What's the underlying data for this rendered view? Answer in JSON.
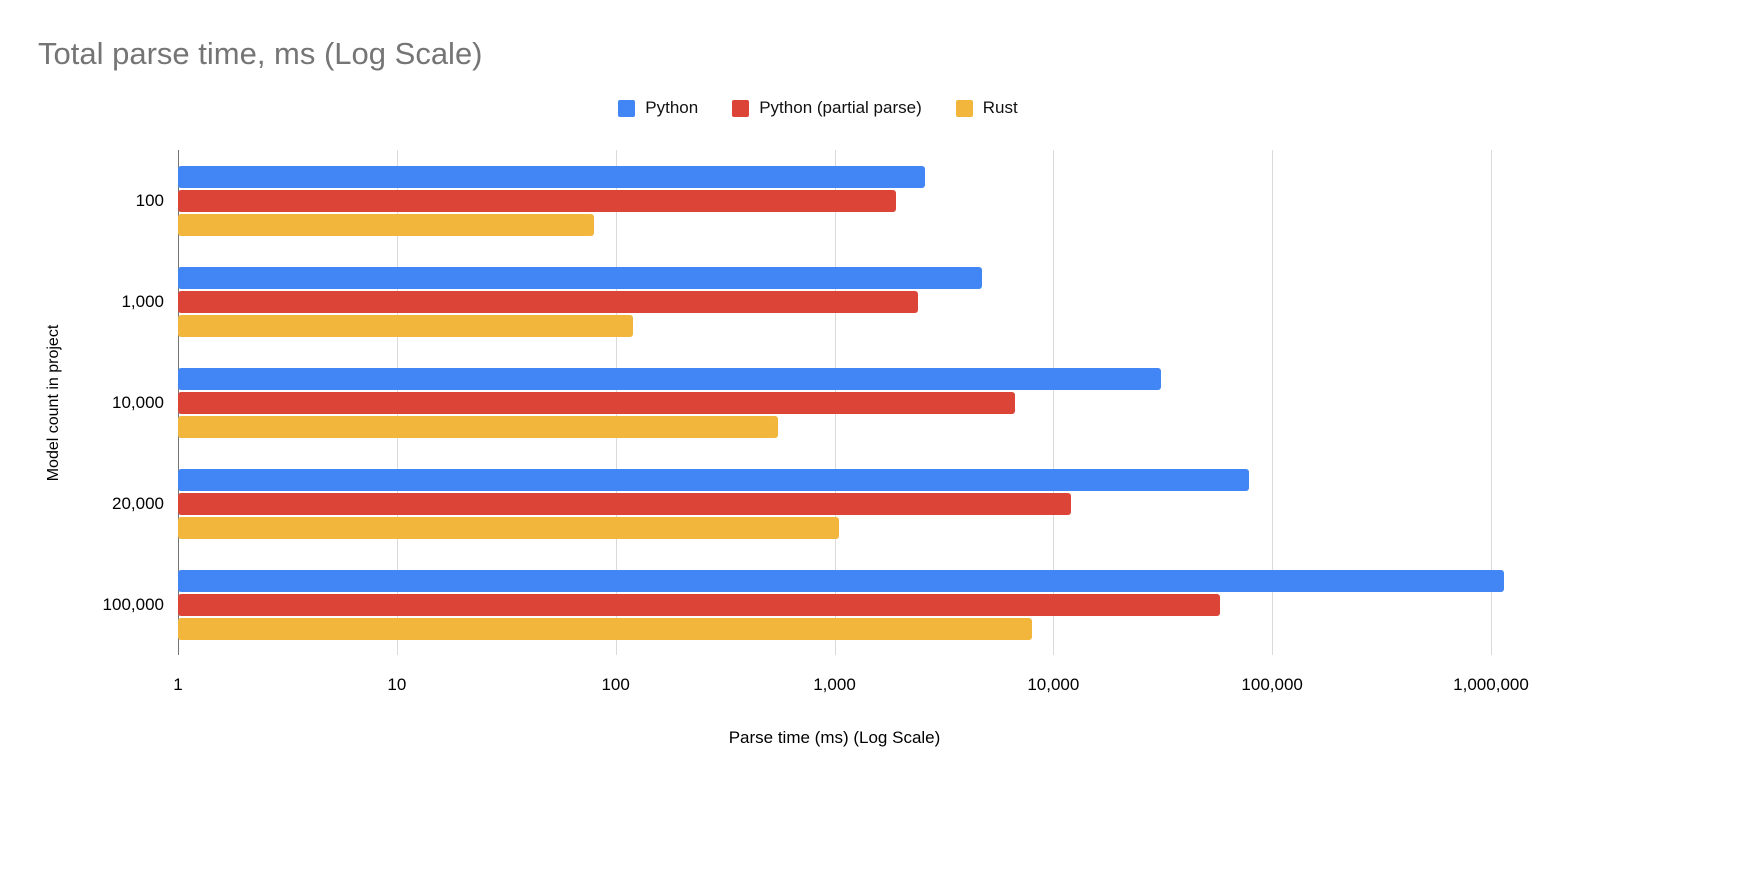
{
  "chart_data": {
    "type": "bar",
    "orientation": "horizontal",
    "title": "Total parse time, ms (Log Scale)",
    "xlabel": "Parse time (ms) (Log Scale)",
    "ylabel": "Model count in project",
    "x_scale": "log",
    "xlim": [
      1,
      1000000
    ],
    "grid": "vertical",
    "legend_position": "top",
    "x_ticks": [
      {
        "label": "1",
        "value": 1
      },
      {
        "label": "10",
        "value": 10
      },
      {
        "label": "100",
        "value": 100
      },
      {
        "label": "1,000",
        "value": 1000
      },
      {
        "label": "10,000",
        "value": 10000
      },
      {
        "label": "100,000",
        "value": 100000
      },
      {
        "label": "1,000,000",
        "value": 1000000
      }
    ],
    "categories": [
      "100",
      "1,000",
      "10,000",
      "20,000",
      "100,000"
    ],
    "series": [
      {
        "name": "Python",
        "color": "#4285F4",
        "values": [
          2600,
          4700,
          31000,
          78000,
          1150000
        ]
      },
      {
        "name": "Python (partial parse)",
        "color": "#DB4437",
        "values": [
          1900,
          2400,
          6700,
          12000,
          58000
        ]
      },
      {
        "name": "Rust",
        "color": "#F2B63C",
        "values": [
          80,
          120,
          550,
          1050,
          8000
        ]
      }
    ]
  }
}
